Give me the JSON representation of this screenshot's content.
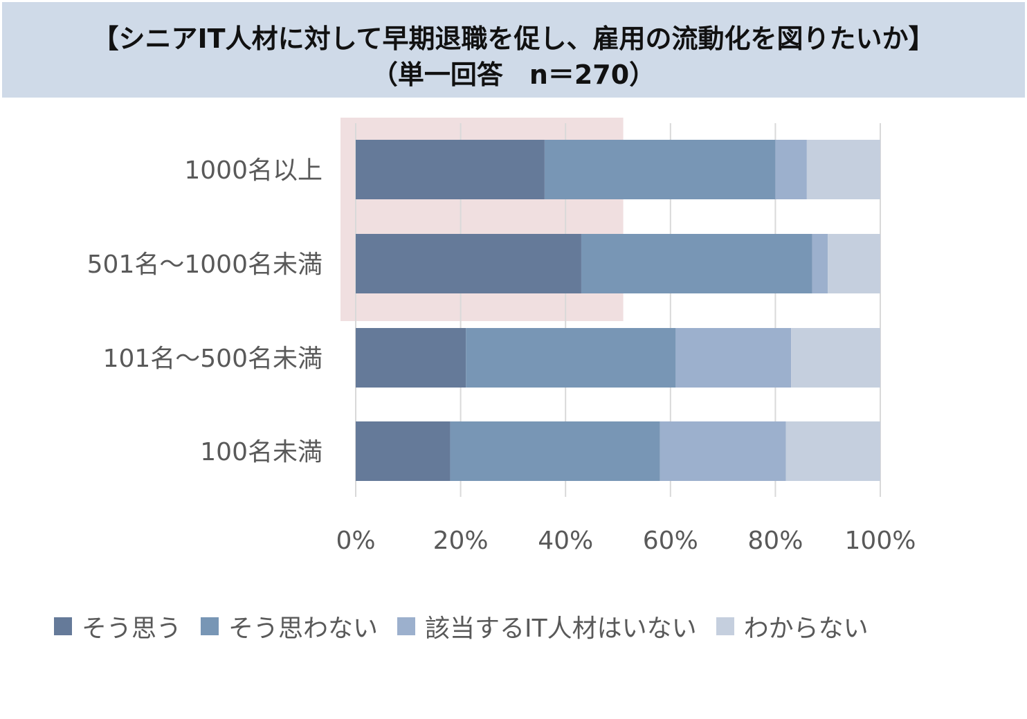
{
  "title": {
    "line1": "【シニアIT人材に対して早期退職を促し、雇用の流動化を図りたいか】",
    "line2": "（単一回答　n＝270）"
  },
  "colors": {
    "title_band": "#cfdae8",
    "highlight": "#f0dfe0",
    "gridline": "#d9d9d9",
    "text": "#595959"
  },
  "chart_data": {
    "type": "bar",
    "orientation": "horizontal",
    "stacked": true,
    "percent_stacked": true,
    "categories": [
      "1000名以上",
      "501名～1000名未満",
      "101名～500名未満",
      "100名未満"
    ],
    "series": [
      {
        "name": "そう思う",
        "color": "#657a99",
        "values": [
          36,
          43,
          21,
          18
        ]
      },
      {
        "name": "そう思わない",
        "color": "#7896b5",
        "values": [
          44,
          44,
          40,
          40
        ]
      },
      {
        "name": "該当するIT人材はいない",
        "color": "#9cb0cd",
        "values": [
          6,
          3,
          22,
          24
        ]
      },
      {
        "name": "わからない",
        "color": "#c5cfde",
        "values": [
          14,
          10,
          17,
          18
        ]
      }
    ],
    "x_ticks": [
      "0%",
      "20%",
      "40%",
      "60%",
      "80%",
      "100%"
    ],
    "xlim": [
      0,
      100
    ],
    "grid": true,
    "legend_position": "bottom",
    "highlight_region": {
      "categories": [
        "1000名以上",
        "501名～1000名未満"
      ],
      "x_range": [
        0,
        51
      ]
    }
  }
}
